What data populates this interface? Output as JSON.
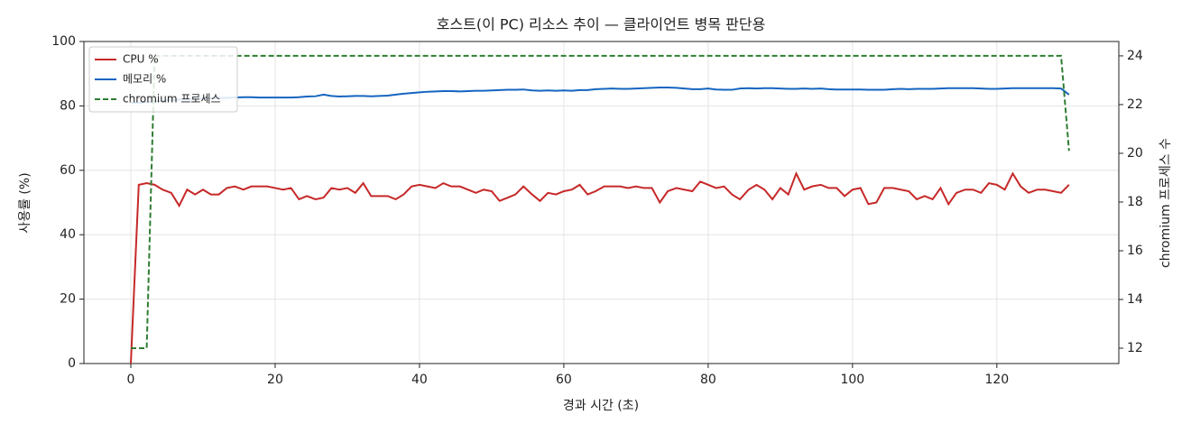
{
  "chart_data": {
    "type": "line",
    "title": "호스트(이 PC) 리소스 추이 — 클라이언트 병목 판단용",
    "xlabel": "경과 시간 (초)",
    "ylabel": "사용률 (%)",
    "y2label": "chromium 프로세스 수",
    "x": [
      0,
      1.1,
      2.2,
      3.3,
      4.4,
      5.6,
      6.7,
      7.8,
      8.9,
      10,
      11.1,
      12.2,
      13.3,
      14.4,
      15.6,
      16.7,
      17.8,
      18.9,
      20,
      21.1,
      22.2,
      23.3,
      24.4,
      25.6,
      26.7,
      27.8,
      28.9,
      30,
      31.1,
      32.2,
      33.3,
      34.4,
      35.6,
      36.7,
      37.8,
      38.9,
      40,
      41.1,
      42.2,
      43.3,
      44.4,
      45.6,
      46.7,
      47.8,
      48.9,
      50,
      51.1,
      52.2,
      53.3,
      54.4,
      55.6,
      56.7,
      57.8,
      58.9,
      60,
      61.1,
      62.2,
      63.3,
      64.4,
      65.6,
      66.7,
      67.8,
      68.9,
      70,
      71.1,
      72.2,
      73.3,
      74.4,
      75.6,
      76.7,
      77.8,
      78.9,
      80,
      81.1,
      82.2,
      83.3,
      84.4,
      85.6,
      86.7,
      87.8,
      88.9,
      90,
      91.1,
      92.2,
      93.3,
      94.4,
      95.6,
      96.7,
      97.8,
      98.9,
      100,
      101.1,
      102.2,
      103.3,
      104.4,
      105.6,
      106.7,
      107.8,
      108.9,
      110,
      111.1,
      112.2,
      113.3,
      114.4,
      115.6,
      116.7,
      117.8,
      118.9,
      120,
      121.1,
      122.2,
      123.3,
      124.4,
      125.6,
      126.7,
      127.8,
      128.9,
      130
    ],
    "series": [
      {
        "name": "CPU %",
        "color": "#c62828",
        "linestyle": "solid",
        "values": [
          0,
          55.5,
          56,
          55.5,
          54,
          53,
          49,
          54,
          52.5,
          54,
          52.5,
          52.5,
          54.5,
          55,
          54,
          55,
          55,
          55,
          54.5,
          54,
          54.5,
          51,
          52,
          51,
          51.5,
          54.5,
          54,
          54.5,
          53,
          56,
          52,
          52,
          52,
          51,
          52.5,
          55,
          55.5,
          55,
          54.5,
          56,
          55,
          55,
          54,
          53,
          54,
          53.5,
          50.5,
          51.5,
          52.5,
          55,
          52.5,
          50.5,
          53,
          52.5,
          53.5,
          54,
          55.5,
          52.5,
          53.5,
          55,
          55,
          55,
          54.5,
          55,
          54.5,
          54.5,
          50,
          53.5,
          54.5,
          54,
          53.5,
          56.5,
          55.5,
          54.5,
          55,
          52.5,
          51,
          54,
          55.5,
          54,
          51,
          54.5,
          52.5,
          59,
          54,
          55,
          55.5,
          54.5,
          54.5,
          52,
          54,
          54.5,
          49.5,
          50,
          54.5,
          54.5,
          54,
          53.5,
          51,
          52,
          51,
          54.5,
          49.5,
          53,
          54,
          54,
          53,
          56,
          55.5,
          54,
          59,
          55,
          53,
          54,
          54,
          53.5,
          53,
          55.5
        ]
      },
      {
        "name": "메모리 %",
        "color": "#1565c0",
        "linestyle": "solid",
        "values": [
          81,
          81,
          81.2,
          81.4,
          81.6,
          81.8,
          82,
          82,
          82.2,
          82.3,
          82.4,
          82.5,
          82.5,
          82.6,
          82.7,
          82.7,
          82.6,
          82.6,
          82.6,
          82.6,
          82.6,
          82.7,
          82.9,
          83,
          83.5,
          83.1,
          82.9,
          83,
          83.1,
          83.1,
          83,
          83.1,
          83.2,
          83.5,
          83.8,
          84,
          84.2,
          84.4,
          84.5,
          84.6,
          84.6,
          84.5,
          84.6,
          84.7,
          84.7,
          84.8,
          84.9,
          85,
          85,
          85.1,
          84.8,
          84.7,
          84.8,
          84.7,
          84.8,
          84.7,
          84.9,
          84.9,
          85.2,
          85.3,
          85.4,
          85.3,
          85.3,
          85.4,
          85.5,
          85.6,
          85.7,
          85.7,
          85.6,
          85.4,
          85.2,
          85.2,
          85.4,
          85.1,
          85,
          85,
          85.4,
          85.5,
          85.4,
          85.5,
          85.5,
          85.4,
          85.3,
          85.3,
          85.4,
          85.3,
          85.4,
          85.2,
          85.1,
          85.1,
          85.1,
          85.1,
          85,
          85,
          85,
          85.2,
          85.3,
          85.2,
          85.3,
          85.3,
          85.3,
          85.4,
          85.5,
          85.5,
          85.5,
          85.5,
          85.4,
          85.3,
          85.3,
          85.4,
          85.5,
          85.5,
          85.5,
          85.5,
          85.5,
          85.5,
          85.4,
          83.5
        ]
      },
      {
        "name": "chromium 프로세스",
        "color": "#2e7d32",
        "linestyle": "dashed",
        "axis": "y2",
        "values": [
          12,
          12,
          12,
          24,
          24,
          24,
          24,
          24,
          24,
          24,
          24,
          24,
          24,
          24,
          24,
          24,
          24,
          24,
          24,
          24,
          24,
          24,
          24,
          24,
          24,
          24,
          24,
          24,
          24,
          24,
          24,
          24,
          24,
          24,
          24,
          24,
          24,
          24,
          24,
          24,
          24,
          24,
          24,
          24,
          24,
          24,
          24,
          24,
          24,
          24,
          24,
          24,
          24,
          24,
          24,
          24,
          24,
          24,
          24,
          24,
          24,
          24,
          24,
          24,
          24,
          24,
          24,
          24,
          24,
          24,
          24,
          24,
          24,
          24,
          24,
          24,
          24,
          24,
          24,
          24,
          24,
          24,
          24,
          24,
          24,
          24,
          24,
          24,
          24,
          24,
          24,
          24,
          24,
          24,
          24,
          24,
          24,
          24,
          24,
          24,
          24,
          24,
          24,
          24,
          24,
          24,
          24,
          24,
          24,
          24,
          24,
          24,
          24,
          24,
          24,
          24,
          24,
          20.1
        ]
      }
    ],
    "xlim": [
      -6.5,
      136.9
    ],
    "xticks": [
      0,
      20,
      40,
      60,
      80,
      100,
      120
    ],
    "ylim": [
      0,
      100
    ],
    "yticks": [
      0,
      20,
      40,
      60,
      80,
      100
    ],
    "y2lim": [
      11.37,
      24.59
    ],
    "y2ticks": [
      12,
      14,
      16,
      18,
      20,
      22,
      24
    ],
    "grid": true,
    "legend": "upper left"
  }
}
